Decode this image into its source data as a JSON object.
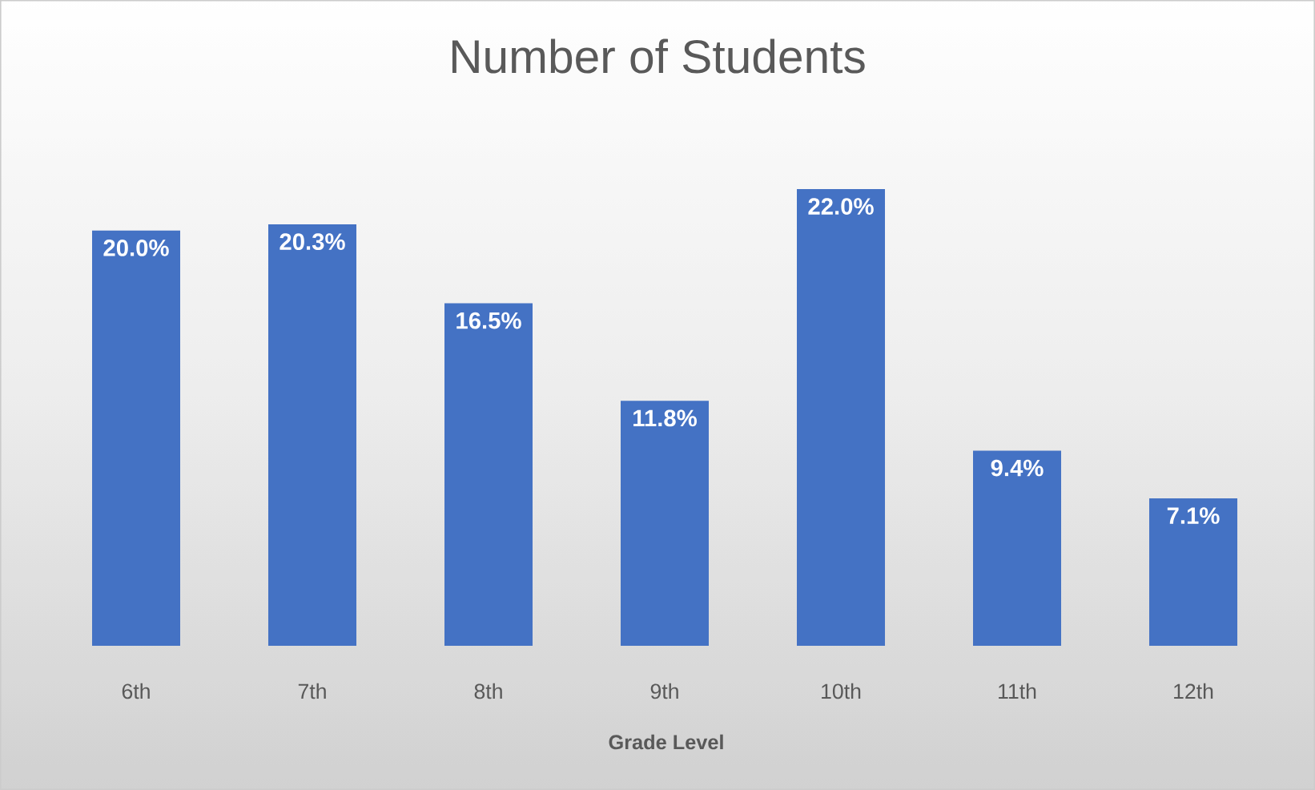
{
  "chart_data": {
    "type": "bar",
    "title": "Number of Students",
    "xlabel": "Grade Level",
    "categories": [
      "6th",
      "7th",
      "8th",
      "9th",
      "10th",
      "11th",
      "12th"
    ],
    "values": [
      20.0,
      20.3,
      16.5,
      11.8,
      22.0,
      9.4,
      7.1
    ],
    "value_labels": [
      "20.0%",
      "20.3%",
      "16.5%",
      "11.8%",
      "22.0%",
      "9.4%",
      "7.1%"
    ],
    "color": "#4472c4"
  }
}
